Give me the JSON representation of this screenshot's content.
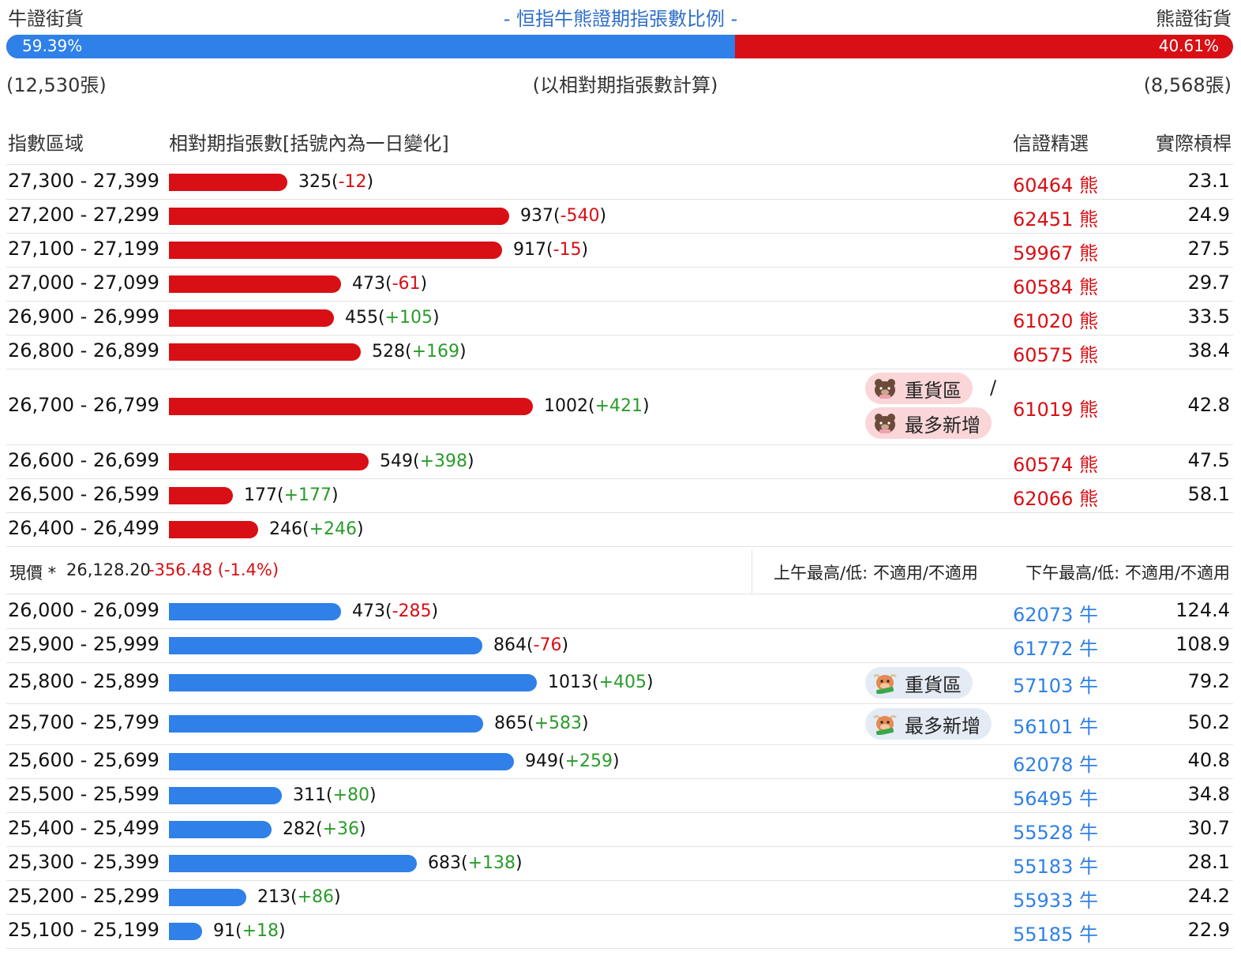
{
  "header": {
    "bull_label": "牛證街貨",
    "title": "- 恒指牛熊證期指張數比例 -",
    "bear_label": "熊證街貨",
    "bull_pct": "59.39%",
    "bear_pct": "40.61%",
    "bull_ratio": 0.5939,
    "bull_count": "(12,530張)",
    "note": "(以相對期指張數計算)",
    "bear_count": "(8,568張)"
  },
  "columns": {
    "range": "指數區域",
    "contracts": "相對期指張數[括號內為一日變化]",
    "pick": "信證精選",
    "leverage": "實際槓桿"
  },
  "colors": {
    "bear": "#d80f14",
    "bull": "#2f80e8",
    "positive": "#2a9b2a"
  },
  "bar_max_value": 1013,
  "bear_rows": [
    {
      "range": "27,300 - 27,399",
      "value": 325,
      "value_text": "325",
      "change": "-12",
      "code": "60464",
      "type": "熊",
      "leverage": "23.1"
    },
    {
      "range": "27,200 - 27,299",
      "value": 937,
      "value_text": "937",
      "change": "-540",
      "code": "62451",
      "type": "熊",
      "leverage": "24.9"
    },
    {
      "range": "27,100 - 27,199",
      "value": 917,
      "value_text": "917",
      "change": "-15",
      "code": "59967",
      "type": "熊",
      "leverage": "27.5"
    },
    {
      "range": "27,000 - 27,099",
      "value": 473,
      "value_text": "473",
      "change": "-61",
      "code": "60584",
      "type": "熊",
      "leverage": "29.7"
    },
    {
      "range": "26,900 - 26,999",
      "value": 455,
      "value_text": "455",
      "change": "+105",
      "code": "61020",
      "type": "熊",
      "leverage": "33.5"
    },
    {
      "range": "26,800 - 26,899",
      "value": 528,
      "value_text": "528",
      "change": "+169",
      "code": "60575",
      "type": "熊",
      "leverage": "38.4"
    },
    {
      "range": "26,700 - 26,799",
      "value": 1002,
      "value_text": "1002",
      "change": "+421",
      "code": "61019",
      "type": "熊",
      "leverage": "42.8",
      "badges": [
        "重貨區",
        "最多新增"
      ],
      "slash": "/"
    },
    {
      "range": "26,600 - 26,699",
      "value": 549,
      "value_text": "549",
      "change": "+398",
      "code": "60574",
      "type": "熊",
      "leverage": "47.5"
    },
    {
      "range": "26,500 - 26,599",
      "value": 177,
      "value_text": "177",
      "change": "+177",
      "code": "62066",
      "type": "熊",
      "leverage": "58.1"
    },
    {
      "range": "26,400 - 26,499",
      "value": 246,
      "value_text": "246",
      "change": "+246",
      "code": "",
      "type": "",
      "leverage": ""
    }
  ],
  "price": {
    "label": "現價 *",
    "value": "26,128.20",
    "change": "-356.48 (-1.4%)",
    "am": "上午最高/低: 不適用/不適用",
    "pm": "下午最高/低: 不適用/不適用"
  },
  "bull_rows": [
    {
      "range": "26,000 - 26,099",
      "value": 473,
      "value_text": "473",
      "change": "-285",
      "code": "62073",
      "type": "牛",
      "leverage": "124.4"
    },
    {
      "range": "25,900 - 25,999",
      "value": 864,
      "value_text": "864",
      "change": "-76",
      "code": "61772",
      "type": "牛",
      "leverage": "108.9"
    },
    {
      "range": "25,800 - 25,899",
      "value": 1013,
      "value_text": "1013",
      "change": "+405",
      "code": "57103",
      "type": "牛",
      "leverage": "79.2",
      "badges": [
        "重貨區"
      ]
    },
    {
      "range": "25,700 - 25,799",
      "value": 865,
      "value_text": "865",
      "change": "+583",
      "code": "56101",
      "type": "牛",
      "leverage": "50.2",
      "badges": [
        "最多新增"
      ]
    },
    {
      "range": "25,600 - 25,699",
      "value": 949,
      "value_text": "949",
      "change": "+259",
      "code": "62078",
      "type": "牛",
      "leverage": "40.8"
    },
    {
      "range": "25,500 - 25,599",
      "value": 311,
      "value_text": "311",
      "change": "+80",
      "code": "56495",
      "type": "牛",
      "leverage": "34.8"
    },
    {
      "range": "25,400 - 25,499",
      "value": 282,
      "value_text": "282",
      "change": "+36",
      "code": "55528",
      "type": "牛",
      "leverage": "30.7"
    },
    {
      "range": "25,300 - 25,399",
      "value": 683,
      "value_text": "683",
      "change": "+138",
      "code": "55183",
      "type": "牛",
      "leverage": "28.1"
    },
    {
      "range": "25,200 - 25,299",
      "value": 213,
      "value_text": "213",
      "change": "+86",
      "code": "55933",
      "type": "牛",
      "leverage": "24.2"
    },
    {
      "range": "25,100 - 25,199",
      "value": 91,
      "value_text": "91",
      "change": "+18",
      "code": "55185",
      "type": "牛",
      "leverage": "22.9"
    }
  ]
}
